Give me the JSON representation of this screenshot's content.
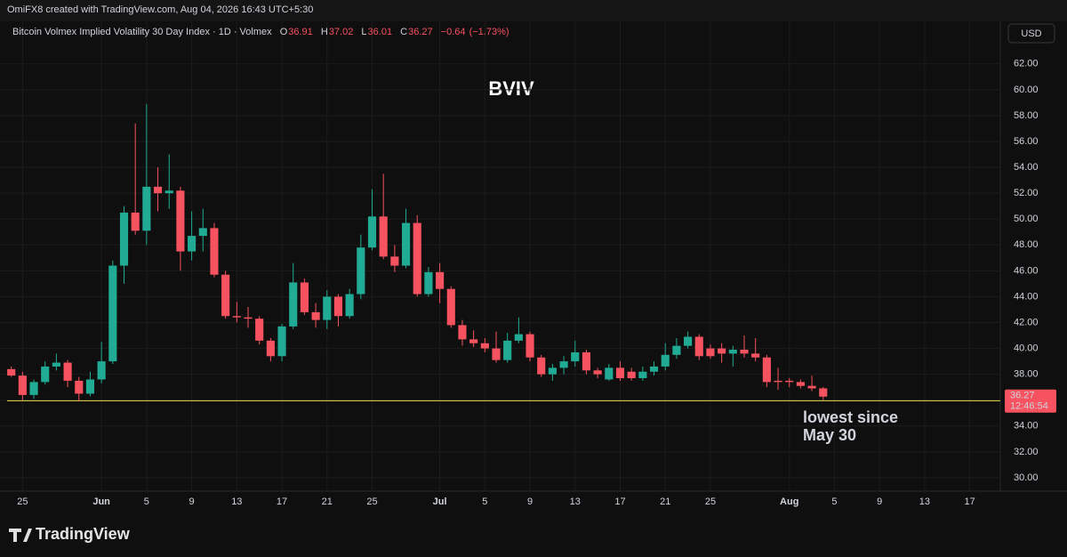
{
  "header": "OmiFX8 created with TradingView.com, Aug 04, 2026 16:43 UTC+5:30",
  "chart_data": {
    "type": "candlestick",
    "title": "BVIV",
    "symbol": "Bitcoin Volmex Implied Volatility 30 Day Index · 1D · Volmex",
    "ohlc_labels": [
      "O",
      "H",
      "L",
      "C"
    ],
    "change": {
      "value": -0.64,
      "label": "−0.64"
    },
    "change_pct": {
      "value": -1.73,
      "label": "(−1.73%)"
    },
    "currency": "USD",
    "countdown": "12:46:54",
    "up_color": "#22ab94",
    "down_color": "#f7525f",
    "x": [
      "May 24",
      "May 25",
      "May 26",
      "May 27",
      "May 28",
      "May 29",
      "May 30",
      "May 31",
      "Jun 1",
      "Jun 2",
      "Jun 3",
      "Jun 4",
      "Jun 5",
      "Jun 6",
      "Jun 7",
      "Jun 8",
      "Jun 9",
      "Jun 10",
      "Jun 11",
      "Jun 12",
      "Jun 13",
      "Jun 14",
      "Jun 15",
      "Jun 16",
      "Jun 17",
      "Jun 18",
      "Jun 19",
      "Jun 20",
      "Jun 21",
      "Jun 22",
      "Jun 23",
      "Jun 24",
      "Jun 25",
      "Jun 26",
      "Jun 27",
      "Jun 28",
      "Jun 29",
      "Jun 30",
      "Jul 1",
      "Jul 2",
      "Jul 3",
      "Jul 4",
      "Jul 5",
      "Jul 6",
      "Jul 7",
      "Jul 8",
      "Jul 9",
      "Jul 10",
      "Jul 11",
      "Jul 12",
      "Jul 13",
      "Jul 14",
      "Jul 15",
      "Jul 16",
      "Jul 17",
      "Jul 18",
      "Jul 19",
      "Jul 20",
      "Jul 21",
      "Jul 22",
      "Jul 23",
      "Jul 24",
      "Jul 25",
      "Jul 26",
      "Jul 27",
      "Jul 28",
      "Jul 29",
      "Jul 30",
      "Jul 31",
      "Aug 1",
      "Aug 2",
      "Aug 3",
      "Aug 4"
    ],
    "open": [
      38.4,
      37.9,
      36.4,
      37.4,
      38.6,
      38.9,
      37.5,
      36.5,
      37.6,
      39.0,
      46.4,
      50.5,
      49.1,
      52.5,
      52.0,
      52.2,
      47.5,
      48.7,
      49.3,
      45.7,
      42.5,
      42.4,
      42.3,
      40.6,
      39.4,
      41.7,
      45.1,
      42.8,
      42.2,
      44.0,
      42.5,
      44.2,
      47.8,
      50.2,
      47.1,
      46.4,
      49.7,
      44.2,
      45.9,
      44.6,
      41.8,
      40.7,
      40.4,
      40.0,
      39.1,
      40.6,
      41.1,
      39.3,
      38.0,
      38.5,
      39.0,
      39.7,
      38.3,
      37.6,
      38.5,
      38.2,
      37.7,
      38.2,
      38.6,
      39.5,
      40.2,
      40.9,
      40.0,
      40.0,
      39.6,
      39.9,
      39.6,
      39.3,
      37.5,
      37.5,
      37.4,
      37.1,
      36.91
    ],
    "high": [
      38.6,
      38.2,
      37.6,
      39.0,
      39.6,
      39.1,
      37.8,
      38.2,
      40.5,
      46.8,
      51.0,
      57.4,
      58.9,
      54.0,
      55.0,
      52.5,
      50.6,
      50.8,
      49.7,
      46.0,
      43.6,
      43.2,
      42.5,
      40.8,
      41.9,
      46.6,
      45.4,
      43.5,
      44.5,
      44.2,
      44.6,
      48.8,
      52.3,
      53.5,
      48.0,
      50.8,
      50.3,
      46.3,
      46.6,
      44.8,
      42.2,
      41.4,
      40.8,
      41.3,
      41.2,
      42.4,
      41.3,
      39.5,
      38.8,
      39.4,
      40.6,
      39.9,
      38.5,
      38.8,
      39.0,
      38.5,
      38.6,
      39.0,
      40.4,
      40.8,
      41.3,
      41.1,
      40.3,
      40.4,
      40.2,
      41.0,
      40.8,
      39.5,
      38.5,
      37.7,
      37.6,
      37.9,
      37.02
    ],
    "low": [
      37.8,
      36.0,
      36.1,
      37.2,
      38.3,
      37.0,
      35.95,
      36.3,
      37.3,
      38.8,
      45.0,
      48.8,
      48.0,
      50.6,
      50.8,
      46.0,
      46.8,
      47.5,
      45.5,
      42.3,
      42.0,
      41.6,
      40.3,
      39.0,
      39.0,
      41.5,
      42.6,
      41.6,
      41.5,
      41.7,
      42.3,
      43.8,
      47.6,
      46.9,
      45.9,
      46.2,
      44.0,
      44.0,
      43.5,
      41.6,
      40.2,
      40.1,
      39.7,
      38.9,
      38.9,
      40.4,
      39.0,
      37.8,
      37.5,
      38.0,
      38.6,
      38.0,
      37.7,
      37.5,
      37.5,
      37.5,
      37.5,
      37.9,
      38.3,
      39.2,
      40.0,
      39.1,
      39.2,
      38.9,
      38.6,
      39.3,
      39.0,
      37.0,
      36.8,
      37.0,
      36.9,
      36.7,
      36.01
    ],
    "close": [
      37.9,
      36.4,
      37.4,
      38.6,
      38.9,
      37.5,
      36.5,
      37.6,
      39.0,
      46.4,
      50.5,
      49.1,
      52.5,
      52.0,
      52.2,
      47.5,
      48.7,
      49.3,
      45.7,
      42.5,
      42.4,
      42.3,
      40.6,
      39.4,
      41.7,
      45.1,
      42.8,
      42.2,
      44.0,
      42.5,
      44.2,
      47.8,
      50.2,
      47.1,
      46.4,
      49.7,
      44.2,
      45.9,
      44.6,
      41.8,
      40.7,
      40.4,
      40.0,
      39.1,
      40.6,
      41.1,
      39.3,
      38.0,
      38.5,
      39.0,
      39.7,
      38.3,
      38.0,
      38.5,
      37.7,
      37.7,
      38.2,
      38.6,
      39.5,
      40.2,
      40.9,
      39.4,
      39.4,
      39.6,
      39.9,
      39.6,
      39.3,
      37.4,
      37.4,
      37.4,
      37.1,
      36.91,
      36.27
    ],
    "xlim": [
      "May 23",
      "Aug 19"
    ],
    "xticks": [
      {
        "value": "May 25",
        "label": "25"
      },
      {
        "value": "Jun 1",
        "label": "Jun"
      },
      {
        "value": "Jun 5",
        "label": "5"
      },
      {
        "value": "Jun 9",
        "label": "9"
      },
      {
        "value": "Jun 13",
        "label": "13"
      },
      {
        "value": "Jun 17",
        "label": "17"
      },
      {
        "value": "Jun 21",
        "label": "21"
      },
      {
        "value": "Jun 25",
        "label": "25"
      },
      {
        "value": "Jul 1",
        "label": "Jul"
      },
      {
        "value": "Jul 5",
        "label": "5"
      },
      {
        "value": "Jul 9",
        "label": "9"
      },
      {
        "value": "Jul 13",
        "label": "13"
      },
      {
        "value": "Jul 17",
        "label": "17"
      },
      {
        "value": "Jul 21",
        "label": "21"
      },
      {
        "value": "Jul 25",
        "label": "25"
      },
      {
        "value": "Aug 1",
        "label": "Aug"
      },
      {
        "value": "Aug 5",
        "label": "5"
      },
      {
        "value": "Aug 9",
        "label": "9"
      },
      {
        "value": "Aug 13",
        "label": "13"
      },
      {
        "value": "Aug 17",
        "label": "17"
      }
    ],
    "ylim": [
      29.1,
      63.5
    ],
    "yticks": [
      {
        "value": 30,
        "label": "30.00"
      },
      {
        "value": 32,
        "label": "32.00"
      },
      {
        "value": 34,
        "label": "34.00"
      },
      {
        "value": 36,
        "label": "36.00"
      },
      {
        "value": 38,
        "label": "38.00"
      },
      {
        "value": 40,
        "label": "40.00"
      },
      {
        "value": 42,
        "label": "42.00"
      },
      {
        "value": 44,
        "label": "44.00"
      },
      {
        "value": 46,
        "label": "46.00"
      },
      {
        "value": 48,
        "label": "48.00"
      },
      {
        "value": 50,
        "label": "50.00"
      },
      {
        "value": 52,
        "label": "52.00"
      },
      {
        "value": 54,
        "label": "54.00"
      },
      {
        "value": 56,
        "label": "56.00"
      },
      {
        "value": 58,
        "label": "58.00"
      },
      {
        "value": 60,
        "label": "60.00"
      },
      {
        "value": 62,
        "label": "62.00"
      }
    ],
    "grid": true,
    "horizontal_line": {
      "value": 35.95,
      "color": "#d4c24a"
    },
    "annotation": {
      "lines": [
        "lowest since",
        "May 30"
      ],
      "color": "#f59a23"
    }
  },
  "watermark": "TradingView"
}
